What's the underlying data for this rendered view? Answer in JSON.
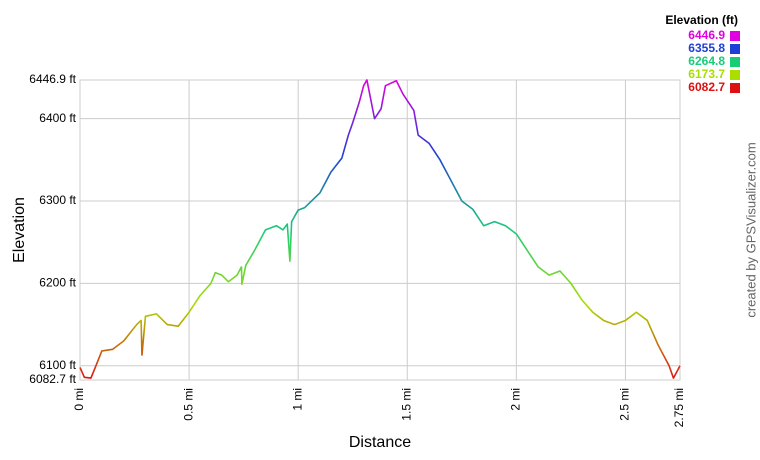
{
  "chart_data": {
    "type": "line",
    "x_label": "Distance",
    "y_label": "Elevation",
    "credit": "created by GPSVisualizer.com",
    "legend_title": "Elevation (ft)",
    "color_scale": [
      {
        "value": 6446.9,
        "color": "#e000e0"
      },
      {
        "value": 6355.8,
        "color": "#1f3fd6"
      },
      {
        "value": 6264.8,
        "color": "#19cc77"
      },
      {
        "value": 6173.7,
        "color": "#aadd00"
      },
      {
        "value": 6082.7,
        "color": "#dd1111"
      }
    ],
    "xlim": [
      0,
      2.75
    ],
    "ylim": [
      6082.7,
      6446.9
    ],
    "xticks": [
      {
        "value": 0,
        "label": "0 mi"
      },
      {
        "value": 0.5,
        "label": "0.5 mi"
      },
      {
        "value": 1,
        "label": "1 mi"
      },
      {
        "value": 1.5,
        "label": "1.5 mi"
      },
      {
        "value": 2,
        "label": "2 mi"
      },
      {
        "value": 2.5,
        "label": "2.5 mi"
      },
      {
        "value": 2.75,
        "label": "2.75 mi"
      }
    ],
    "yticks": [
      {
        "value": 6082.7,
        "label": "6082.7 ft"
      },
      {
        "value": 6100,
        "label": "6100 ft"
      },
      {
        "value": 6200,
        "label": "6200 ft"
      },
      {
        "value": 6300,
        "label": "6300 ft"
      },
      {
        "value": 6400,
        "label": "6400 ft"
      },
      {
        "value": 6446.9,
        "label": "6446.9 ft"
      }
    ],
    "grid": true,
    "x": [
      0,
      0.02,
      0.05,
      0.07,
      0.1,
      0.15,
      0.2,
      0.23,
      0.26,
      0.28,
      0.284,
      0.3,
      0.35,
      0.4,
      0.45,
      0.5,
      0.55,
      0.6,
      0.62,
      0.65,
      0.68,
      0.72,
      0.74,
      0.742,
      0.76,
      0.8,
      0.85,
      0.9,
      0.93,
      0.95,
      0.962,
      0.97,
      1.0,
      1.03,
      1.1,
      1.15,
      1.2,
      1.23,
      1.25,
      1.28,
      1.3,
      1.315,
      1.35,
      1.38,
      1.4,
      1.45,
      1.48,
      1.53,
      1.55,
      1.6,
      1.65,
      1.7,
      1.75,
      1.8,
      1.85,
      1.9,
      1.95,
      2.0,
      2.05,
      2.1,
      2.15,
      2.2,
      2.25,
      2.3,
      2.35,
      2.4,
      2.45,
      2.5,
      2.55,
      2.6,
      2.65,
      2.7,
      2.72,
      2.75
    ],
    "values": [
      6098,
      6086,
      6085,
      6098,
      6118,
      6120,
      6130,
      6140,
      6150,
      6155,
      6113,
      6160,
      6163,
      6150,
      6148,
      6165,
      6185,
      6200,
      6213,
      6210,
      6202,
      6210,
      6220,
      6199,
      6222,
      6240,
      6265,
      6270,
      6265,
      6272,
      6227,
      6275,
      6289,
      6292,
      6310,
      6335,
      6352,
      6380,
      6395,
      6420,
      6440,
      6447,
      6400,
      6412,
      6440,
      6446,
      6430,
      6410,
      6380,
      6370,
      6350,
      6325,
      6300,
      6290,
      6270,
      6275,
      6270,
      6260,
      6240,
      6220,
      6210,
      6215,
      6200,
      6180,
      6165,
      6155,
      6150,
      6155,
      6165,
      6155,
      6125,
      6100,
      6085,
      6100
    ]
  }
}
